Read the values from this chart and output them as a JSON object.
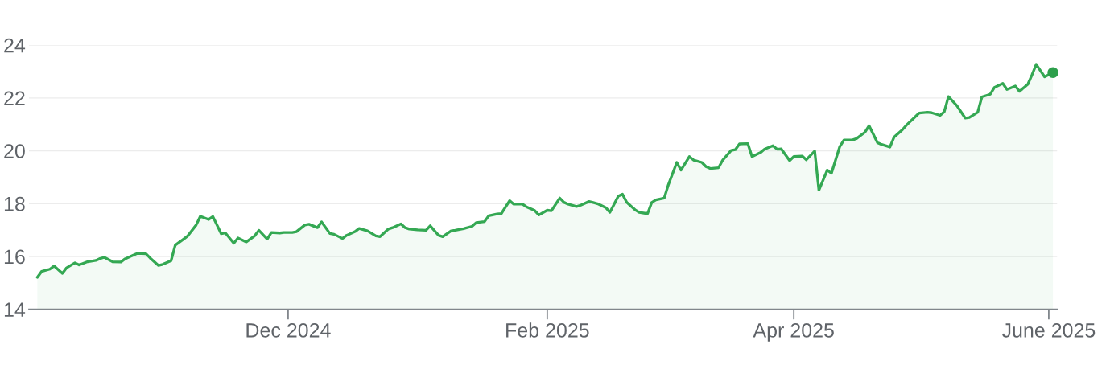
{
  "chart_data": {
    "type": "area",
    "x": [
      "2024-10-02",
      "2024-10-03",
      "2024-10-05",
      "2024-10-06",
      "2024-10-08",
      "2024-10-09",
      "2024-10-11",
      "2024-10-12",
      "2024-10-14",
      "2024-10-16",
      "2024-10-17",
      "2024-10-18",
      "2024-10-20",
      "2024-10-22",
      "2024-10-23",
      "2024-10-25",
      "2024-10-26",
      "2024-10-28",
      "2024-10-29",
      "2024-10-31",
      "2024-11-01",
      "2024-11-03",
      "2024-11-04",
      "2024-11-06",
      "2024-11-07",
      "2024-11-09",
      "2024-11-10",
      "2024-11-12",
      "2024-11-13",
      "2024-11-15",
      "2024-11-16",
      "2024-11-18",
      "2024-11-19",
      "2024-11-21",
      "2024-11-23",
      "2024-11-24",
      "2024-11-26",
      "2024-11-27",
      "2024-11-29",
      "2024-11-30",
      "2024-12-02",
      "2024-12-03",
      "2024-12-05",
      "2024-12-06",
      "2024-12-08",
      "2024-12-09",
      "2024-12-11",
      "2024-12-12",
      "2024-12-14",
      "2024-12-15",
      "2024-12-17",
      "2024-12-18",
      "2024-12-20",
      "2024-12-22",
      "2024-12-23",
      "2024-12-25",
      "2024-12-26",
      "2024-12-28",
      "2024-12-29",
      "2024-12-30",
      "2025-01-01",
      "2025-01-03",
      "2025-01-04",
      "2025-01-06",
      "2025-01-07",
      "2025-01-09",
      "2025-01-10",
      "2025-01-12",
      "2025-01-14",
      "2025-01-15",
      "2025-01-17",
      "2025-01-18",
      "2025-01-20",
      "2025-01-21",
      "2025-01-23",
      "2025-01-24",
      "2025-01-26",
      "2025-01-27",
      "2025-01-29",
      "2025-01-30",
      "2025-02-01",
      "2025-02-02",
      "2025-02-04",
      "2025-02-05",
      "2025-02-06",
      "2025-02-08",
      "2025-02-09",
      "2025-02-11",
      "2025-02-12",
      "2025-02-13",
      "2025-02-15",
      "2025-02-16",
      "2025-02-18",
      "2025-02-19",
      "2025-02-20",
      "2025-02-22",
      "2025-02-23",
      "2025-02-25",
      "2025-02-26",
      "2025-02-27",
      "2025-03-01",
      "2025-03-02",
      "2025-03-04",
      "2025-03-05",
      "2025-03-07",
      "2025-03-08",
      "2025-03-10",
      "2025-03-11",
      "2025-03-12",
      "2025-03-14",
      "2025-03-15",
      "2025-03-17",
      "2025-03-18",
      "2025-03-19",
      "2025-03-21",
      "2025-03-22",
      "2025-03-24",
      "2025-03-25",
      "2025-03-27",
      "2025-03-28",
      "2025-03-29",
      "2025-03-31",
      "2025-04-01",
      "2025-04-03",
      "2025-04-04",
      "2025-04-06",
      "2025-04-07",
      "2025-04-09",
      "2025-04-10",
      "2025-04-12",
      "2025-04-13",
      "2025-04-15",
      "2025-04-16",
      "2025-04-18",
      "2025-04-19",
      "2025-04-21",
      "2025-04-22",
      "2025-04-24",
      "2025-04-25",
      "2025-04-27",
      "2025-04-28",
      "2025-04-30",
      "2025-05-01",
      "2025-05-03",
      "2025-05-04",
      "2025-05-06",
      "2025-05-07",
      "2025-05-08",
      "2025-05-10",
      "2025-05-12",
      "2025-05-13",
      "2025-05-15",
      "2025-05-16",
      "2025-05-18",
      "2025-05-19",
      "2025-05-21",
      "2025-05-22",
      "2025-05-24",
      "2025-05-25",
      "2025-05-27",
      "2025-05-28",
      "2025-05-29",
      "2025-05-31",
      "2025-06-02"
    ],
    "series": [
      {
        "color": "#34a853",
        "values": [
          15.21,
          15.43,
          15.52,
          15.64,
          15.36,
          15.57,
          15.76,
          15.68,
          15.8,
          15.85,
          15.92,
          15.97,
          15.8,
          15.79,
          15.91,
          16.05,
          16.12,
          16.1,
          15.94,
          15.66,
          15.7,
          15.84,
          16.43,
          16.66,
          16.78,
          17.19,
          17.52,
          17.4,
          17.51,
          16.86,
          16.89,
          16.5,
          16.7,
          16.55,
          16.78,
          16.99,
          16.66,
          16.91,
          16.89,
          16.91,
          16.91,
          16.94,
          17.19,
          17.22,
          17.09,
          17.31,
          16.87,
          16.84,
          16.68,
          16.8,
          16.94,
          17.06,
          16.97,
          16.78,
          16.75,
          17.04,
          17.09,
          17.23,
          17.09,
          17.04,
          17.01,
          16.99,
          17.16,
          16.8,
          16.75,
          16.97,
          16.99,
          17.05,
          17.14,
          17.28,
          17.32,
          17.54,
          17.61,
          17.62,
          18.11,
          17.98,
          17.99,
          17.88,
          17.74,
          17.57,
          17.75,
          17.73,
          18.21,
          18.05,
          17.98,
          17.89,
          17.94,
          18.08,
          18.04,
          18.0,
          17.85,
          17.67,
          18.28,
          18.36,
          18.05,
          17.77,
          17.67,
          17.62,
          18.04,
          18.14,
          18.21,
          18.72,
          19.56,
          19.27,
          19.78,
          19.65,
          19.56,
          19.4,
          19.33,
          19.36,
          19.65,
          20.01,
          20.04,
          20.26,
          20.27,
          19.78,
          19.93,
          20.06,
          20.19,
          20.06,
          20.07,
          19.63,
          19.78,
          19.8,
          19.66,
          19.99,
          18.51,
          19.27,
          19.15,
          20.16,
          20.41,
          20.41,
          20.46,
          20.7,
          20.95,
          20.31,
          20.24,
          20.14,
          20.52,
          20.8,
          20.98,
          21.28,
          21.43,
          21.46,
          21.44,
          21.34,
          21.48,
          22.05,
          21.71,
          21.24,
          21.26,
          21.46,
          22.04,
          22.14,
          22.4,
          22.55,
          22.32,
          22.45,
          22.25,
          22.52,
          22.88,
          23.27,
          22.8,
          22.96
        ]
      },
      {
        "type": "scatter",
        "x": [
          "2025-06-02"
        ],
        "color": "#2d9f4b",
        "marker": "circle",
        "values": [
          22.96
        ]
      }
    ],
    "xlim": [
      "2024-09-30",
      "2025-06-03"
    ],
    "xticks": [
      {
        "value": "2024-12-01",
        "label": "Dec 2024"
      },
      {
        "value": "2025-02-01",
        "label": "Feb 2025"
      },
      {
        "value": "2025-04-01",
        "label": "Apr 2025"
      },
      {
        "value": "2025-06-01",
        "label": "June 2025"
      }
    ],
    "ylim": [
      14,
      24
    ],
    "yticks": [
      14,
      16,
      18,
      20,
      22,
      24
    ],
    "grid": "y"
  }
}
